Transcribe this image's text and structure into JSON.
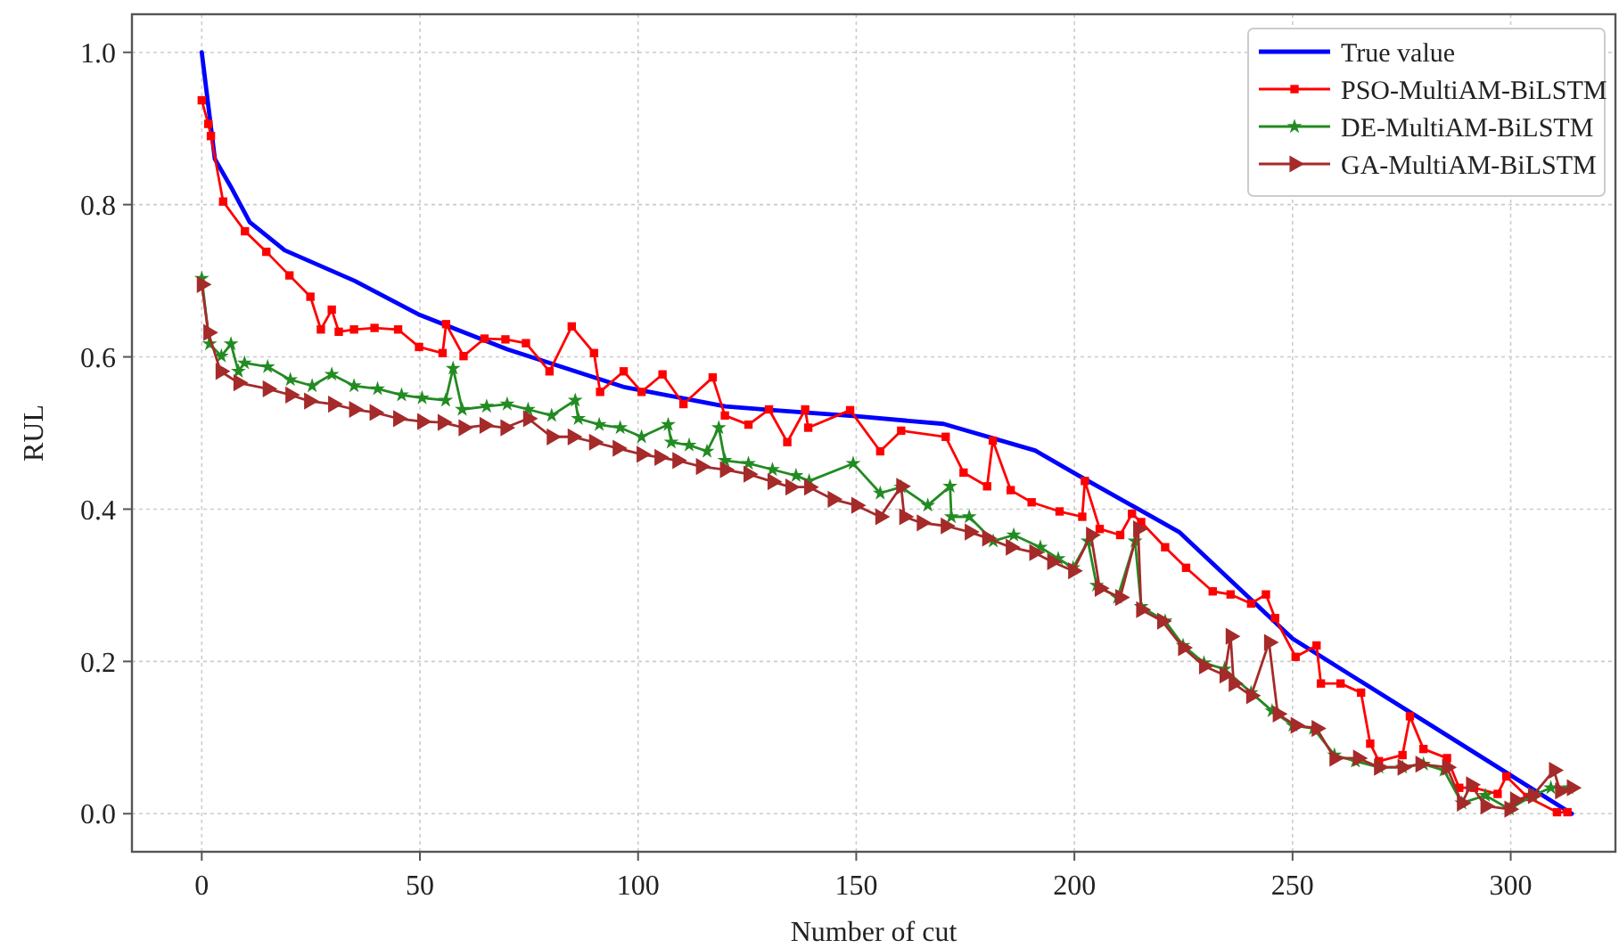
{
  "chart_data": {
    "type": "line",
    "xlabel": "Number of cut",
    "ylabel": "RUL",
    "xlim": [
      -16,
      324
    ],
    "ylim": [
      -0.05,
      1.05
    ],
    "xticks": [
      0,
      50,
      100,
      150,
      200,
      250,
      300
    ],
    "yticks": [
      {
        "value": 0,
        "label": "0.0"
      },
      {
        "value": 0.2,
        "label": "0.2"
      },
      {
        "value": 0.4,
        "label": "0.4"
      },
      {
        "value": 0.6,
        "label": "0.6"
      },
      {
        "value": 0.8,
        "label": "0.8"
      },
      {
        "value": 1,
        "label": "1.0"
      }
    ],
    "grid": true,
    "legend": "top right",
    "series": [
      {
        "name": "True value",
        "color": "#0000ff",
        "marker": "none",
        "x": [
          0,
          3,
          7,
          11,
          19,
          35,
          50,
          70,
          97,
          120,
          131,
          150,
          170,
          191,
          201,
          224,
          250,
          289,
          314
        ],
        "values": [
          1.0,
          0.86,
          0.82,
          0.777,
          0.74,
          0.7,
          0.655,
          0.61,
          0.56,
          0.535,
          0.53,
          0.522,
          0.512,
          0.477,
          0.444,
          0.37,
          0.23,
          0.09,
          0.0
        ]
      },
      {
        "name": "PSO-MultiAM-BiLSTM",
        "color": "#ff0000",
        "marker": "square",
        "x": [
          0,
          1.5,
          2.1,
          4.9,
          9.9,
          14.8,
          20.1,
          24.9,
          27.3,
          29.8,
          31.4,
          34.9,
          39.6,
          45,
          49.8,
          55.2,
          56,
          60,
          64.8,
          69.6,
          74.3,
          79.7,
          84.8,
          89.9,
          91.3,
          96.7,
          100.8,
          105.6,
          110.4,
          117.1,
          119.9,
          125.3,
          130,
          134.2,
          138.3,
          139,
          148.6,
          155.5,
          160.3,
          170.5,
          174.6,
          180,
          181.3,
          185.4,
          190.2,
          196.6,
          201.8,
          202.4,
          205.8,
          210.5,
          213.2,
          215.3,
          220.8,
          225.6,
          231.7,
          235.8,
          240.5,
          243.9,
          246,
          250.7,
          255.5,
          256.5,
          261,
          265.7,
          267.8,
          269.8,
          275.2,
          276.9,
          280,
          285.4,
          288.2,
          291.6,
          297,
          299,
          303.8,
          310.6,
          313
        ],
        "values": [
          0.937,
          0.906,
          0.89,
          0.804,
          0.765,
          0.738,
          0.707,
          0.679,
          0.636,
          0.662,
          0.633,
          0.636,
          0.638,
          0.636,
          0.613,
          0.605,
          0.643,
          0.601,
          0.624,
          0.623,
          0.618,
          0.581,
          0.64,
          0.605,
          0.554,
          0.581,
          0.554,
          0.577,
          0.538,
          0.573,
          0.523,
          0.511,
          0.531,
          0.488,
          0.531,
          0.507,
          0.53,
          0.476,
          0.503,
          0.495,
          0.448,
          0.43,
          0.49,
          0.425,
          0.409,
          0.397,
          0.39,
          0.437,
          0.374,
          0.366,
          0.394,
          0.383,
          0.35,
          0.323,
          0.292,
          0.288,
          0.276,
          0.288,
          0.257,
          0.206,
          0.221,
          0.171,
          0.171,
          0.159,
          0.092,
          0.069,
          0.077,
          0.128,
          0.085,
          0.073,
          0.034,
          0.034,
          0.026,
          0.049,
          0.022,
          0.002,
          0.002
        ]
      },
      {
        "name": "DE-MultiAM-BiLSTM",
        "color": "#228b22",
        "marker": "star",
        "x": [
          0,
          1.8,
          4.5,
          6.7,
          8.4,
          9.8,
          15.1,
          20.3,
          25.3,
          29.8,
          34.9,
          40.3,
          45.8,
          50.5,
          55.9,
          57.6,
          59.7,
          65.3,
          70,
          74.8,
          80.2,
          85.6,
          86.3,
          91.1,
          95.9,
          100.8,
          106.9,
          107.6,
          111.7,
          115.8,
          118.5,
          119.9,
          125.3,
          130.8,
          136.2,
          139.2,
          149.3,
          155.5,
          160.3,
          166.4,
          171.5,
          171.8,
          175.9,
          181.4,
          186.1,
          192.2,
          196.3,
          199.7,
          203.1,
          205.1,
          209.9,
          213.9,
          215.3,
          220.8,
          224.9,
          229.7,
          234.4,
          240.5,
          245.3,
          250.1,
          254.8,
          259.6,
          264.4,
          269.8,
          275.2,
          280,
          284.7,
          288.8,
          294.2,
          299.7,
          305.1,
          309.2,
          313.3
        ],
        "values": [
          0.703,
          0.617,
          0.601,
          0.617,
          0.581,
          0.592,
          0.587,
          0.57,
          0.562,
          0.577,
          0.562,
          0.558,
          0.55,
          0.546,
          0.543,
          0.585,
          0.531,
          0.535,
          0.538,
          0.531,
          0.523,
          0.543,
          0.519,
          0.511,
          0.507,
          0.495,
          0.511,
          0.488,
          0.484,
          0.476,
          0.507,
          0.464,
          0.46,
          0.452,
          0.444,
          0.437,
          0.46,
          0.421,
          0.429,
          0.405,
          0.43,
          0.39,
          0.39,
          0.358,
          0.366,
          0.35,
          0.335,
          0.323,
          0.358,
          0.3,
          0.284,
          0.358,
          0.272,
          0.253,
          0.221,
          0.198,
          0.19,
          0.159,
          0.135,
          0.116,
          0.112,
          0.077,
          0.069,
          0.061,
          0.061,
          0.065,
          0.057,
          0.014,
          0.024,
          0.006,
          0.024,
          0.034,
          0.034
        ]
      },
      {
        "name": "GA-MultiAM-BiLSTM",
        "color": "#a52a2a",
        "marker": "triangle",
        "x": [
          0,
          1.5,
          4.3,
          8.4,
          15.1,
          20.3,
          24.6,
          30.1,
          34.9,
          39.6,
          45,
          50.5,
          55.2,
          60,
          64.8,
          69.6,
          74.8,
          80.2,
          85,
          89.9,
          95.3,
          100.8,
          104.9,
          109,
          114.4,
          119.9,
          125.3,
          130.8,
          134.9,
          139.2,
          144.6,
          150,
          155.5,
          160.3,
          161,
          165,
          170.5,
          176,
          180,
          185.4,
          190.8,
          194.9,
          199.7,
          203.8,
          205.8,
          210.5,
          214.6,
          215.3,
          220.1,
          224.9,
          229.7,
          234.4,
          235.8,
          236.5,
          240.5,
          244.6,
          246.6,
          250.7,
          255.5,
          259.6,
          265,
          269.8,
          275.2,
          279.3,
          285.4,
          288.8,
          290.9,
          294.2,
          299.7,
          301,
          305.1,
          309.9,
          311.3,
          314
        ],
        "values": [
          0.695,
          0.632,
          0.581,
          0.566,
          0.558,
          0.55,
          0.542,
          0.538,
          0.531,
          0.527,
          0.519,
          0.515,
          0.514,
          0.507,
          0.51,
          0.507,
          0.519,
          0.495,
          0.495,
          0.488,
          0.48,
          0.472,
          0.468,
          0.464,
          0.456,
          0.452,
          0.446,
          0.436,
          0.429,
          0.429,
          0.413,
          0.405,
          0.39,
          0.43,
          0.39,
          0.382,
          0.378,
          0.37,
          0.362,
          0.35,
          0.343,
          0.331,
          0.319,
          0.366,
          0.296,
          0.284,
          0.374,
          0.268,
          0.253,
          0.218,
          0.194,
          0.182,
          0.233,
          0.171,
          0.155,
          0.225,
          0.131,
          0.116,
          0.112,
          0.073,
          0.073,
          0.061,
          0.061,
          0.065,
          0.061,
          0.014,
          0.038,
          0.01,
          0.006,
          0.018,
          0.024,
          0.057,
          0.03,
          0.034
        ]
      }
    ]
  }
}
